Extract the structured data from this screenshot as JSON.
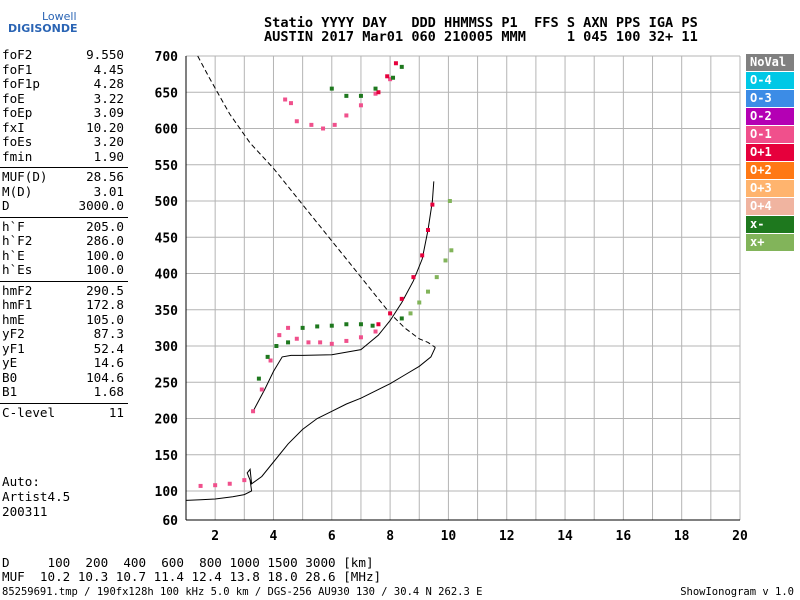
{
  "logo": {
    "top": "Lowell",
    "main": "DIGISONDE"
  },
  "header": {
    "line1": "Statio YYYY DAY   DDD HHMMSS P1  FFS S AXN PPS IGA PS",
    "line2": "AUSTIN 2017 Mar01 060 210005 MMM     1 045 100 32+ 11"
  },
  "params_groups": [
    [
      [
        "foF2",
        "9.550"
      ],
      [
        "foF1",
        "4.45"
      ],
      [
        "foF1p",
        "4.28"
      ],
      [
        "foE",
        "3.22"
      ],
      [
        "foEp",
        "3.09"
      ],
      [
        "fxI",
        "10.20"
      ],
      [
        "foEs",
        "3.20"
      ],
      [
        "fmin",
        "1.90"
      ]
    ],
    [
      [
        "MUF(D)",
        "28.56"
      ],
      [
        "M(D)",
        "3.01"
      ],
      [
        "D",
        "3000.0"
      ]
    ],
    [
      [
        "h`F",
        "205.0"
      ],
      [
        "h`F2",
        "286.0"
      ],
      [
        "h`E",
        "100.0"
      ],
      [
        "h`Es",
        "100.0"
      ]
    ],
    [
      [
        "hmF2",
        "290.5"
      ],
      [
        "hmF1",
        "172.8"
      ],
      [
        "hmE",
        "105.0"
      ],
      [
        "yF2",
        "87.3"
      ],
      [
        "yF1",
        "52.4"
      ],
      [
        "yE",
        "14.6"
      ],
      [
        "B0",
        "104.6"
      ],
      [
        "B1",
        "1.68"
      ]
    ],
    [
      [
        "C-level",
        "11"
      ]
    ]
  ],
  "auto": {
    "line1": "Auto:",
    "line2": "Artist4.5",
    "line3": "200311"
  },
  "legend": [
    {
      "label": "NoVal",
      "color": "#808080"
    },
    {
      "label": "O-4",
      "color": "#00c8e6"
    },
    {
      "label": "O-3",
      "color": "#3c8ce6"
    },
    {
      "label": "O-2",
      "color": "#b400b4"
    },
    {
      "label": "O-1",
      "color": "#f0508c"
    },
    {
      "label": "O+1",
      "color": "#e6003c"
    },
    {
      "label": "O+2",
      "color": "#ff7814"
    },
    {
      "label": "O+3",
      "color": "#ffb46e"
    },
    {
      "label": "O+4",
      "color": "#f0b4a0"
    },
    {
      "label": "x-",
      "color": "#1e781e"
    },
    {
      "label": "x+",
      "color": "#82b45a"
    }
  ],
  "bottom": {
    "line1": "D     100  200  400  600  800 1000 1500 3000 [km]",
    "line2": "MUF  10.2 10.3 10.7 11.4 12.4 13.8 18.0 28.6 [MHz]"
  },
  "footer": {
    "left": "85259691.tmp / 190fx128h 100 kHz 5.0 km / DGS-256 AU930 130 / 30.4 N 262.3 E",
    "right": "ShowIonogram v 1.0"
  },
  "chart_data": {
    "type": "scatter",
    "xlabel": "",
    "ylabel": "",
    "xlim": [
      1,
      20
    ],
    "ylim": [
      60,
      700
    ],
    "x_ticks": [
      2,
      4,
      6,
      8,
      10,
      12,
      14,
      16,
      18,
      20
    ],
    "y_ticks": [
      60,
      100,
      150,
      200,
      250,
      300,
      350,
      400,
      450,
      500,
      550,
      600,
      650,
      700
    ],
    "series": [
      {
        "name": "O-1",
        "color": "#f0508c",
        "points": [
          [
            1.5,
            107
          ],
          [
            2.0,
            108
          ],
          [
            2.5,
            110
          ],
          [
            3.0,
            115
          ],
          [
            3.3,
            210
          ],
          [
            3.6,
            240
          ],
          [
            3.9,
            280
          ],
          [
            4.2,
            315
          ],
          [
            4.5,
            325
          ],
          [
            4.8,
            310
          ],
          [
            5.2,
            305
          ],
          [
            5.6,
            305
          ],
          [
            6.0,
            303
          ],
          [
            6.5,
            307
          ],
          [
            7.0,
            312
          ],
          [
            7.5,
            320
          ],
          [
            4.4,
            640
          ],
          [
            4.6,
            635
          ],
          [
            4.8,
            610
          ],
          [
            5.3,
            605
          ],
          [
            5.7,
            600
          ],
          [
            6.1,
            605
          ],
          [
            6.5,
            618
          ],
          [
            7.0,
            632
          ],
          [
            7.5,
            648
          ],
          [
            8.0,
            668
          ]
        ]
      },
      {
        "name": "O+1",
        "color": "#e6003c",
        "points": [
          [
            7.6,
            330
          ],
          [
            8.0,
            345
          ],
          [
            8.4,
            365
          ],
          [
            8.8,
            395
          ],
          [
            9.1,
            425
          ],
          [
            9.3,
            460
          ],
          [
            9.45,
            495
          ],
          [
            7.6,
            650
          ],
          [
            7.9,
            672
          ],
          [
            8.2,
            690
          ]
        ]
      },
      {
        "name": "x-",
        "color": "#1e781e",
        "points": [
          [
            3.5,
            255
          ],
          [
            3.8,
            285
          ],
          [
            4.1,
            300
          ],
          [
            4.5,
            305
          ],
          [
            5.0,
            325
          ],
          [
            5.5,
            327
          ],
          [
            6.0,
            328
          ],
          [
            6.5,
            330
          ],
          [
            7.0,
            330
          ],
          [
            7.4,
            328
          ],
          [
            8.4,
            338
          ],
          [
            6.0,
            655
          ],
          [
            6.5,
            645
          ],
          [
            7.0,
            645
          ],
          [
            7.5,
            655
          ],
          [
            8.1,
            670
          ],
          [
            8.4,
            685
          ]
        ]
      },
      {
        "name": "x+",
        "color": "#82b45a",
        "points": [
          [
            8.7,
            345
          ],
          [
            9.0,
            360
          ],
          [
            9.3,
            375
          ],
          [
            9.6,
            395
          ],
          [
            9.9,
            418
          ],
          [
            10.1,
            432
          ],
          [
            10.05,
            500
          ]
        ]
      }
    ],
    "lines": [
      {
        "name": "O-trace",
        "style": "solid",
        "points": [
          [
            3.3,
            210
          ],
          [
            3.7,
            240
          ],
          [
            4.0,
            265
          ],
          [
            4.3,
            285
          ],
          [
            4.6,
            287
          ],
          [
            5.0,
            287
          ],
          [
            6.0,
            288
          ],
          [
            7.0,
            295
          ],
          [
            7.6,
            315
          ],
          [
            8.0,
            335
          ],
          [
            8.4,
            360
          ],
          [
            8.8,
            390
          ],
          [
            9.1,
            420
          ],
          [
            9.3,
            460
          ],
          [
            9.45,
            500
          ],
          [
            9.5,
            527
          ]
        ]
      },
      {
        "name": "profile",
        "style": "solid",
        "points": [
          [
            1,
            87
          ],
          [
            1.5,
            88
          ],
          [
            2.0,
            89
          ],
          [
            2.6,
            92
          ],
          [
            3.0,
            95
          ],
          [
            3.25,
            100
          ],
          [
            3.2,
            115
          ],
          [
            3.1,
            125
          ],
          [
            3.2,
            130
          ],
          [
            3.25,
            110
          ],
          [
            3.6,
            120
          ],
          [
            4.0,
            140
          ],
          [
            4.5,
            165
          ],
          [
            5.0,
            185
          ],
          [
            5.5,
            200
          ],
          [
            6.0,
            210
          ],
          [
            6.5,
            220
          ],
          [
            7.0,
            228
          ],
          [
            7.5,
            238
          ],
          [
            8.0,
            248
          ],
          [
            8.5,
            260
          ],
          [
            9.0,
            272
          ],
          [
            9.4,
            285
          ],
          [
            9.55,
            298
          ]
        ]
      },
      {
        "name": "MUF",
        "style": "dashed",
        "points": [
          [
            1.4,
            700
          ],
          [
            1.8,
            670
          ],
          [
            2.5,
            620
          ],
          [
            3.2,
            580
          ],
          [
            4.0,
            545
          ],
          [
            4.5,
            520
          ],
          [
            5.0,
            495
          ],
          [
            5.5,
            470
          ],
          [
            6.0,
            445
          ],
          [
            6.5,
            420
          ],
          [
            7.0,
            395
          ],
          [
            7.5,
            370
          ],
          [
            8.0,
            345
          ],
          [
            8.5,
            325
          ],
          [
            9.0,
            310
          ],
          [
            9.3,
            305
          ],
          [
            9.55,
            298
          ]
        ]
      }
    ]
  }
}
